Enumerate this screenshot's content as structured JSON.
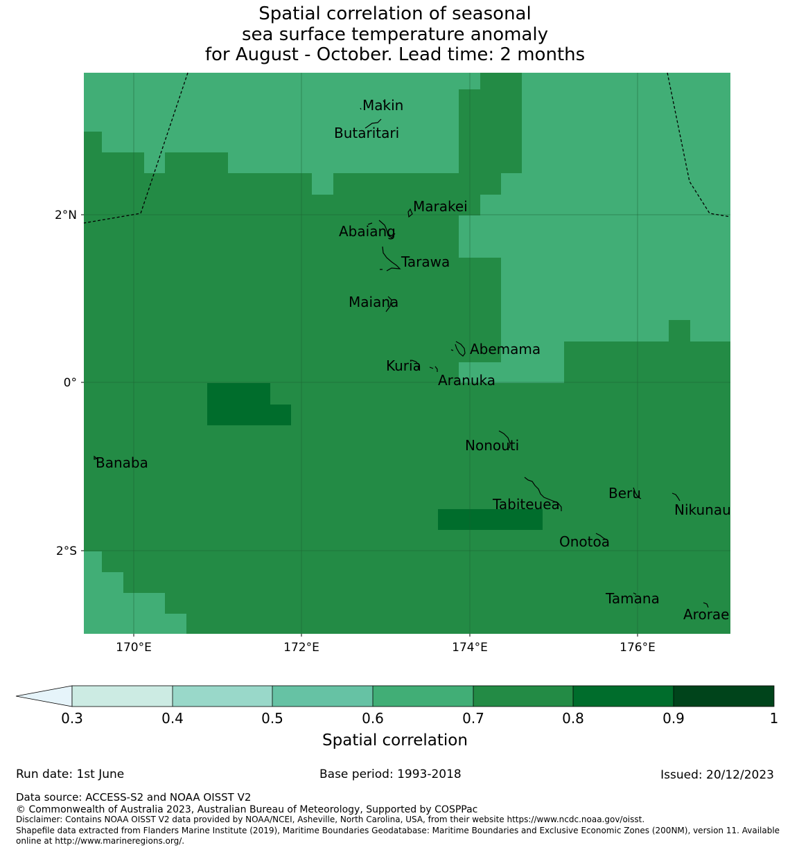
{
  "title": {
    "line1": "Spatial correlation of seasonal",
    "line2": "sea surface temperature anomaly",
    "line3": "for August - October. Lead time: 2 months"
  },
  "map": {
    "x_ticks": [
      "170°E",
      "172°E",
      "174°E",
      "176°E"
    ],
    "y_ticks": [
      "2°N",
      "0°",
      "2°S"
    ],
    "places": [
      "Makin",
      "Butaritari",
      "Marakei",
      "Abaiang",
      "Tarawa",
      "Maiana",
      "Abemama",
      "Kuria",
      "Aranuka",
      "Nonouti",
      "Banaba",
      "Tabiteuea",
      "Beru",
      "Nikunau",
      "Onotoa",
      "Tamana",
      "Arorae"
    ],
    "field": {
      "dominant_class": "0.7–0.8",
      "class_0_6_0_7": "northern and north-eastern waters, small south-west corner",
      "class_0_8_0_9": "two small patches near 171°E 0.3°S and 174.3°E 1.8°S"
    },
    "eez_boundary": "dashed black line"
  },
  "colorbar": {
    "ticks": [
      "0.3",
      "0.4",
      "0.5",
      "0.6",
      "0.7",
      "0.8",
      "0.9",
      "1"
    ],
    "label": "Spatial correlation",
    "colors": [
      "#e6f4fa",
      "#ccebe3",
      "#99d8c9",
      "#66c2a4",
      "#41ae76",
      "#238b45",
      "#006d2c",
      "#00441b"
    ],
    "extend": "min"
  },
  "footer": {
    "run_date": "Run date: 1st June",
    "base_period": "Base period: 1993-2018",
    "issued": "Issued: 20/12/2023",
    "data_source": "Data source: ACCESS-S2 and NOAA OISST V2",
    "copyright": "© Commonwealth of Australia 2023, Australian Bureau of Meteorology, Supported by COSPPac",
    "disclaimer": "Disclaimer: Contains NOAA OISST V2 data provided by NOAA/NCEI, Asheville, North Carolina, USA, from their website https://www.ncdc.noaa.gov/oisst.",
    "shapefile1": "Shapefile data extracted from Flanders Marine Institute (2019), Maritime Boundaries Geodatabase: Maritime Boundaries and Exclusive Economic Zones (200NM), version 11. Available",
    "shapefile2": "online at http://www.marineregions.org/."
  }
}
